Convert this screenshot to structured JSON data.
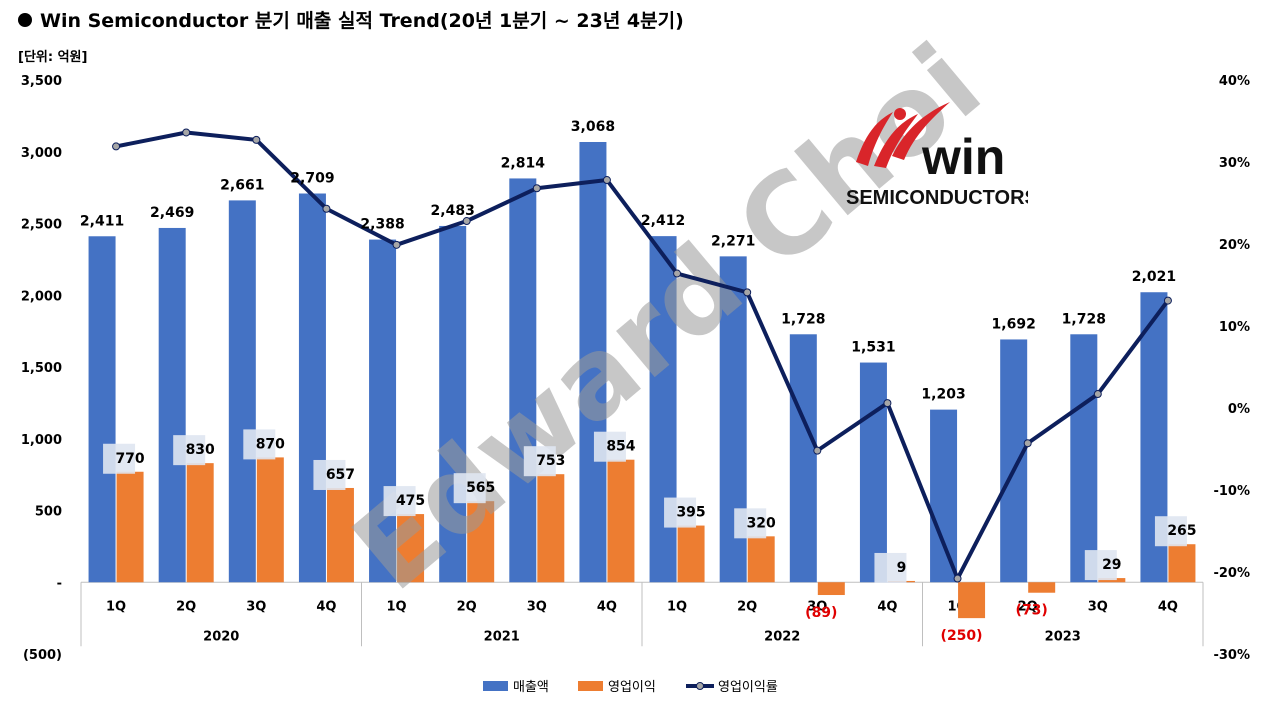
{
  "title": "Win Semiconductor 분기 매출 실적 Trend(20년 1분기 ~ 23년 4분기)",
  "unit_label": "[단위: 억원]",
  "logo": {
    "brand_text": "win",
    "sub_text": "SEMICONDUCTORS"
  },
  "watermark": "Edward Choi",
  "chart_data": {
    "type": "bar",
    "categories": [
      "1Q",
      "2Q",
      "3Q",
      "4Q",
      "1Q",
      "2Q",
      "3Q",
      "4Q",
      "1Q",
      "2Q",
      "3Q",
      "4Q",
      "1Q",
      "2Q",
      "3Q",
      "4Q"
    ],
    "year_groups": [
      {
        "label": "2020",
        "count": 4
      },
      {
        "label": "2021",
        "count": 4
      },
      {
        "label": "2022",
        "count": 4
      },
      {
        "label": "2023",
        "count": 4
      }
    ],
    "series": [
      {
        "name": "매출액",
        "type": "bar",
        "axis": "left",
        "color": "#4472c4",
        "values": [
          2411,
          2469,
          2661,
          2709,
          2388,
          2483,
          2814,
          3068,
          2412,
          2271,
          1728,
          1531,
          1203,
          1692,
          1728,
          2021
        ],
        "labels": [
          "2,411",
          "2,469",
          "2,661",
          "2,709",
          "2,388",
          "2,483",
          "2,814",
          "3,068",
          "2,412",
          "2,271",
          "1,728",
          "1,531",
          "1,203",
          "1,692",
          "1,728",
          "2,021"
        ]
      },
      {
        "name": "영업이익",
        "type": "bar",
        "axis": "left",
        "color": "#ed7d31",
        "values": [
          770,
          830,
          870,
          657,
          475,
          565,
          753,
          854,
          395,
          320,
          -89,
          9,
          -250,
          -73,
          29,
          265
        ],
        "labels": [
          "770",
          "830",
          "870",
          "657",
          "475",
          "565",
          "753",
          "854",
          "395",
          "320",
          "(89)",
          "9",
          "(250)",
          "(73)",
          "29",
          "265"
        ]
      },
      {
        "name": "영업이익률",
        "type": "line",
        "axis": "right",
        "color": "#0d1f5c",
        "values": [
          0.319,
          0.336,
          0.327,
          0.243,
          0.199,
          0.228,
          0.268,
          0.278,
          0.164,
          0.141,
          -0.052,
          0.006,
          -0.208,
          -0.043,
          0.017,
          0.131
        ]
      }
    ],
    "left_axis": {
      "min": -500,
      "max": 3500,
      "step": 500,
      "tick_labels": [
        "(500)",
        "-",
        "500",
        "1,000",
        "1,500",
        "2,000",
        "2,500",
        "3,000",
        "3,500"
      ]
    },
    "right_axis": {
      "min": -0.3,
      "max": 0.4,
      "step": 0.1,
      "tick_labels": [
        "-30%",
        "-20%",
        "-10%",
        "0%",
        "10%",
        "20%",
        "30%",
        "40%"
      ]
    },
    "legend": {
      "placement": "bottom"
    },
    "grid": false
  }
}
